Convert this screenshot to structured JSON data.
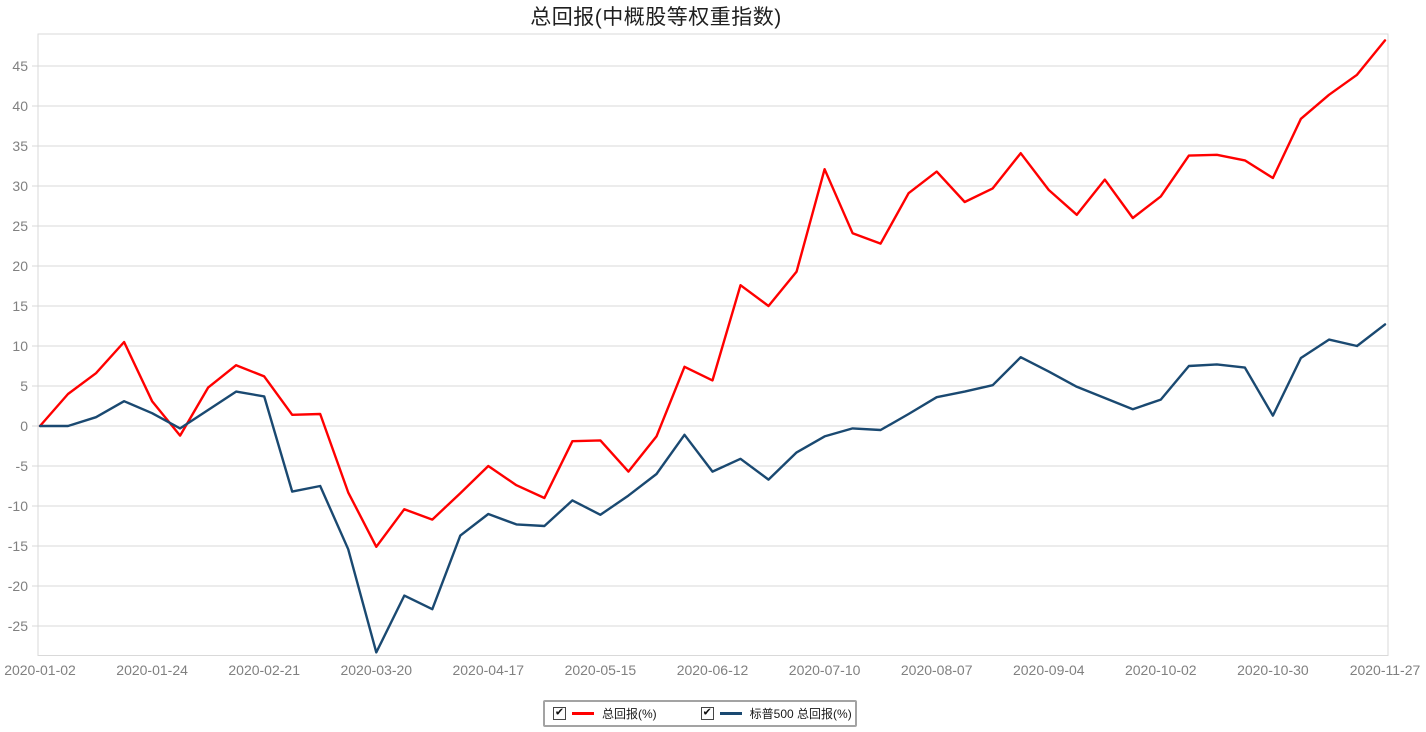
{
  "page": {
    "title": "总回报(中概股等权重指数)"
  },
  "icons": {
    "checked": "✔"
  },
  "colors": {
    "total_return_line": "#ff0000",
    "sp500_line": "#1a4971",
    "grid": "#d9d9d9",
    "axis_text": "#808080",
    "title_text": "#1f1f1f"
  },
  "legend": {
    "items": [
      {
        "key": "total-return",
        "label": "总回报(%)",
        "checked": true,
        "color": "#ff0000"
      },
      {
        "key": "sp500-total-return",
        "label": "标普500 总回报(%)",
        "checked": true,
        "color": "#1a4971"
      }
    ]
  },
  "chart_data": {
    "type": "line",
    "title": "总回报(中概股等权重指数)",
    "xlabel": "",
    "ylabel": "",
    "grid": true,
    "legend_position": "bottom",
    "ylim": [
      -28.7,
      49
    ],
    "yticks": [
      -25,
      -20,
      -15,
      -10,
      -5,
      0,
      5,
      10,
      15,
      20,
      25,
      30,
      35,
      40,
      45
    ],
    "x": [
      "2020-01-02",
      "2020-01-03",
      "2020-01-10",
      "2020-01-17",
      "2020-01-24",
      "2020-01-31",
      "2020-02-07",
      "2020-02-14",
      "2020-02-21",
      "2020-02-28",
      "2020-03-06",
      "2020-03-13",
      "2020-03-20",
      "2020-03-27",
      "2020-04-03",
      "2020-04-09",
      "2020-04-17",
      "2020-04-24",
      "2020-05-01",
      "2020-05-08",
      "2020-05-15",
      "2020-05-22",
      "2020-05-29",
      "2020-06-05",
      "2020-06-12",
      "2020-06-19",
      "2020-06-26",
      "2020-07-02",
      "2020-07-10",
      "2020-07-17",
      "2020-07-24",
      "2020-07-31",
      "2020-08-07",
      "2020-08-14",
      "2020-08-21",
      "2020-08-28",
      "2020-09-04",
      "2020-09-11",
      "2020-09-18",
      "2020-09-25",
      "2020-10-02",
      "2020-10-09",
      "2020-10-16",
      "2020-10-23",
      "2020-10-30",
      "2020-11-06",
      "2020-11-13",
      "2020-11-20",
      "2020-11-27"
    ],
    "x_tick_indices": [
      0,
      4,
      8,
      12,
      16,
      20,
      24,
      28,
      32,
      36,
      40,
      44,
      48
    ],
    "series": [
      {
        "name": "总回报(%)",
        "key": "total-return",
        "color": "#ff0000",
        "values": [
          0,
          4.0,
          6.6,
          10.5,
          3.1,
          -1.2,
          4.8,
          7.6,
          6.2,
          1.4,
          1.5,
          -8.3,
          -15.1,
          -10.4,
          -11.7,
          -8.4,
          -5.0,
          -7.4,
          -9.0,
          -1.9,
          -1.8,
          -5.7,
          -1.3,
          7.4,
          5.7,
          17.6,
          15.0,
          19.3,
          32.1,
          24.1,
          22.8,
          29.1,
          31.8,
          28.0,
          29.7,
          34.1,
          29.5,
          26.4,
          30.8,
          26.0,
          28.7,
          33.8,
          33.9,
          33.2,
          31.0,
          38.4,
          41.4,
          43.9,
          48.2
        ]
      },
      {
        "name": "标普500 总回报(%)",
        "key": "sp500-total-return",
        "color": "#1a4971",
        "values": [
          0,
          0,
          1.1,
          3.1,
          1.6,
          -0.3,
          2.0,
          4.3,
          3.7,
          -8.2,
          -7.5,
          -15.4,
          -28.3,
          -21.2,
          -22.9,
          -13.7,
          -11.0,
          -12.3,
          -12.5,
          -9.3,
          -11.1,
          -8.7,
          -6.0,
          -1.1,
          -5.7,
          -4.1,
          -6.7,
          -3.3,
          -1.3,
          -0.3,
          -0.5,
          1.5,
          3.6,
          4.3,
          5.1,
          8.6,
          6.8,
          4.9,
          3.5,
          2.1,
          3.3,
          7.5,
          7.7,
          7.3,
          1.3,
          8.5,
          10.8,
          10.0,
          12.7
        ]
      }
    ]
  }
}
